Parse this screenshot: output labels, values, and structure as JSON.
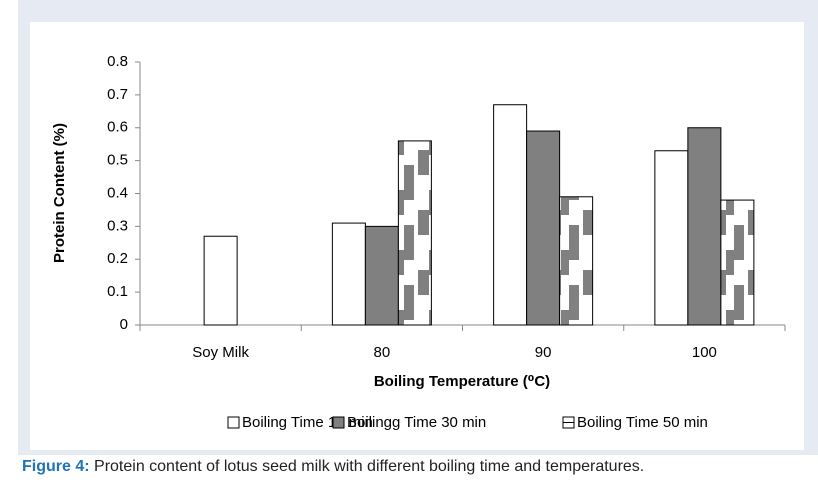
{
  "chart_data": {
    "type": "bar",
    "categories": [
      "Soy Milk",
      "80",
      "90",
      "100"
    ],
    "series": [
      {
        "name": "Boiling Time 10 min",
        "color": "#ffffff",
        "values": [
          0.27,
          0.31,
          0.67,
          0.53
        ]
      },
      {
        "name": "Boilingg Time 30 min",
        "color": "#808080",
        "values": [
          null,
          0.3,
          0.59,
          0.6
        ]
      },
      {
        "name": "Boiling Time 50 min",
        "color": "pattern",
        "values": [
          null,
          0.56,
          0.39,
          0.38
        ]
      }
    ],
    "xlabel": "Boiling Temperature (⁰C)",
    "ylabel": "Protein Content (%)",
    "ylim": [
      0,
      0.8
    ],
    "yticks": [
      0,
      0.1,
      0.2,
      0.3,
      0.4,
      0.5,
      0.6,
      0.7,
      0.8
    ],
    "grid": false,
    "legend": "bottom"
  },
  "caption": {
    "label": "Figure 4:",
    "text": "Protein content of lotus seed milk with different boiling time and temperatures."
  }
}
